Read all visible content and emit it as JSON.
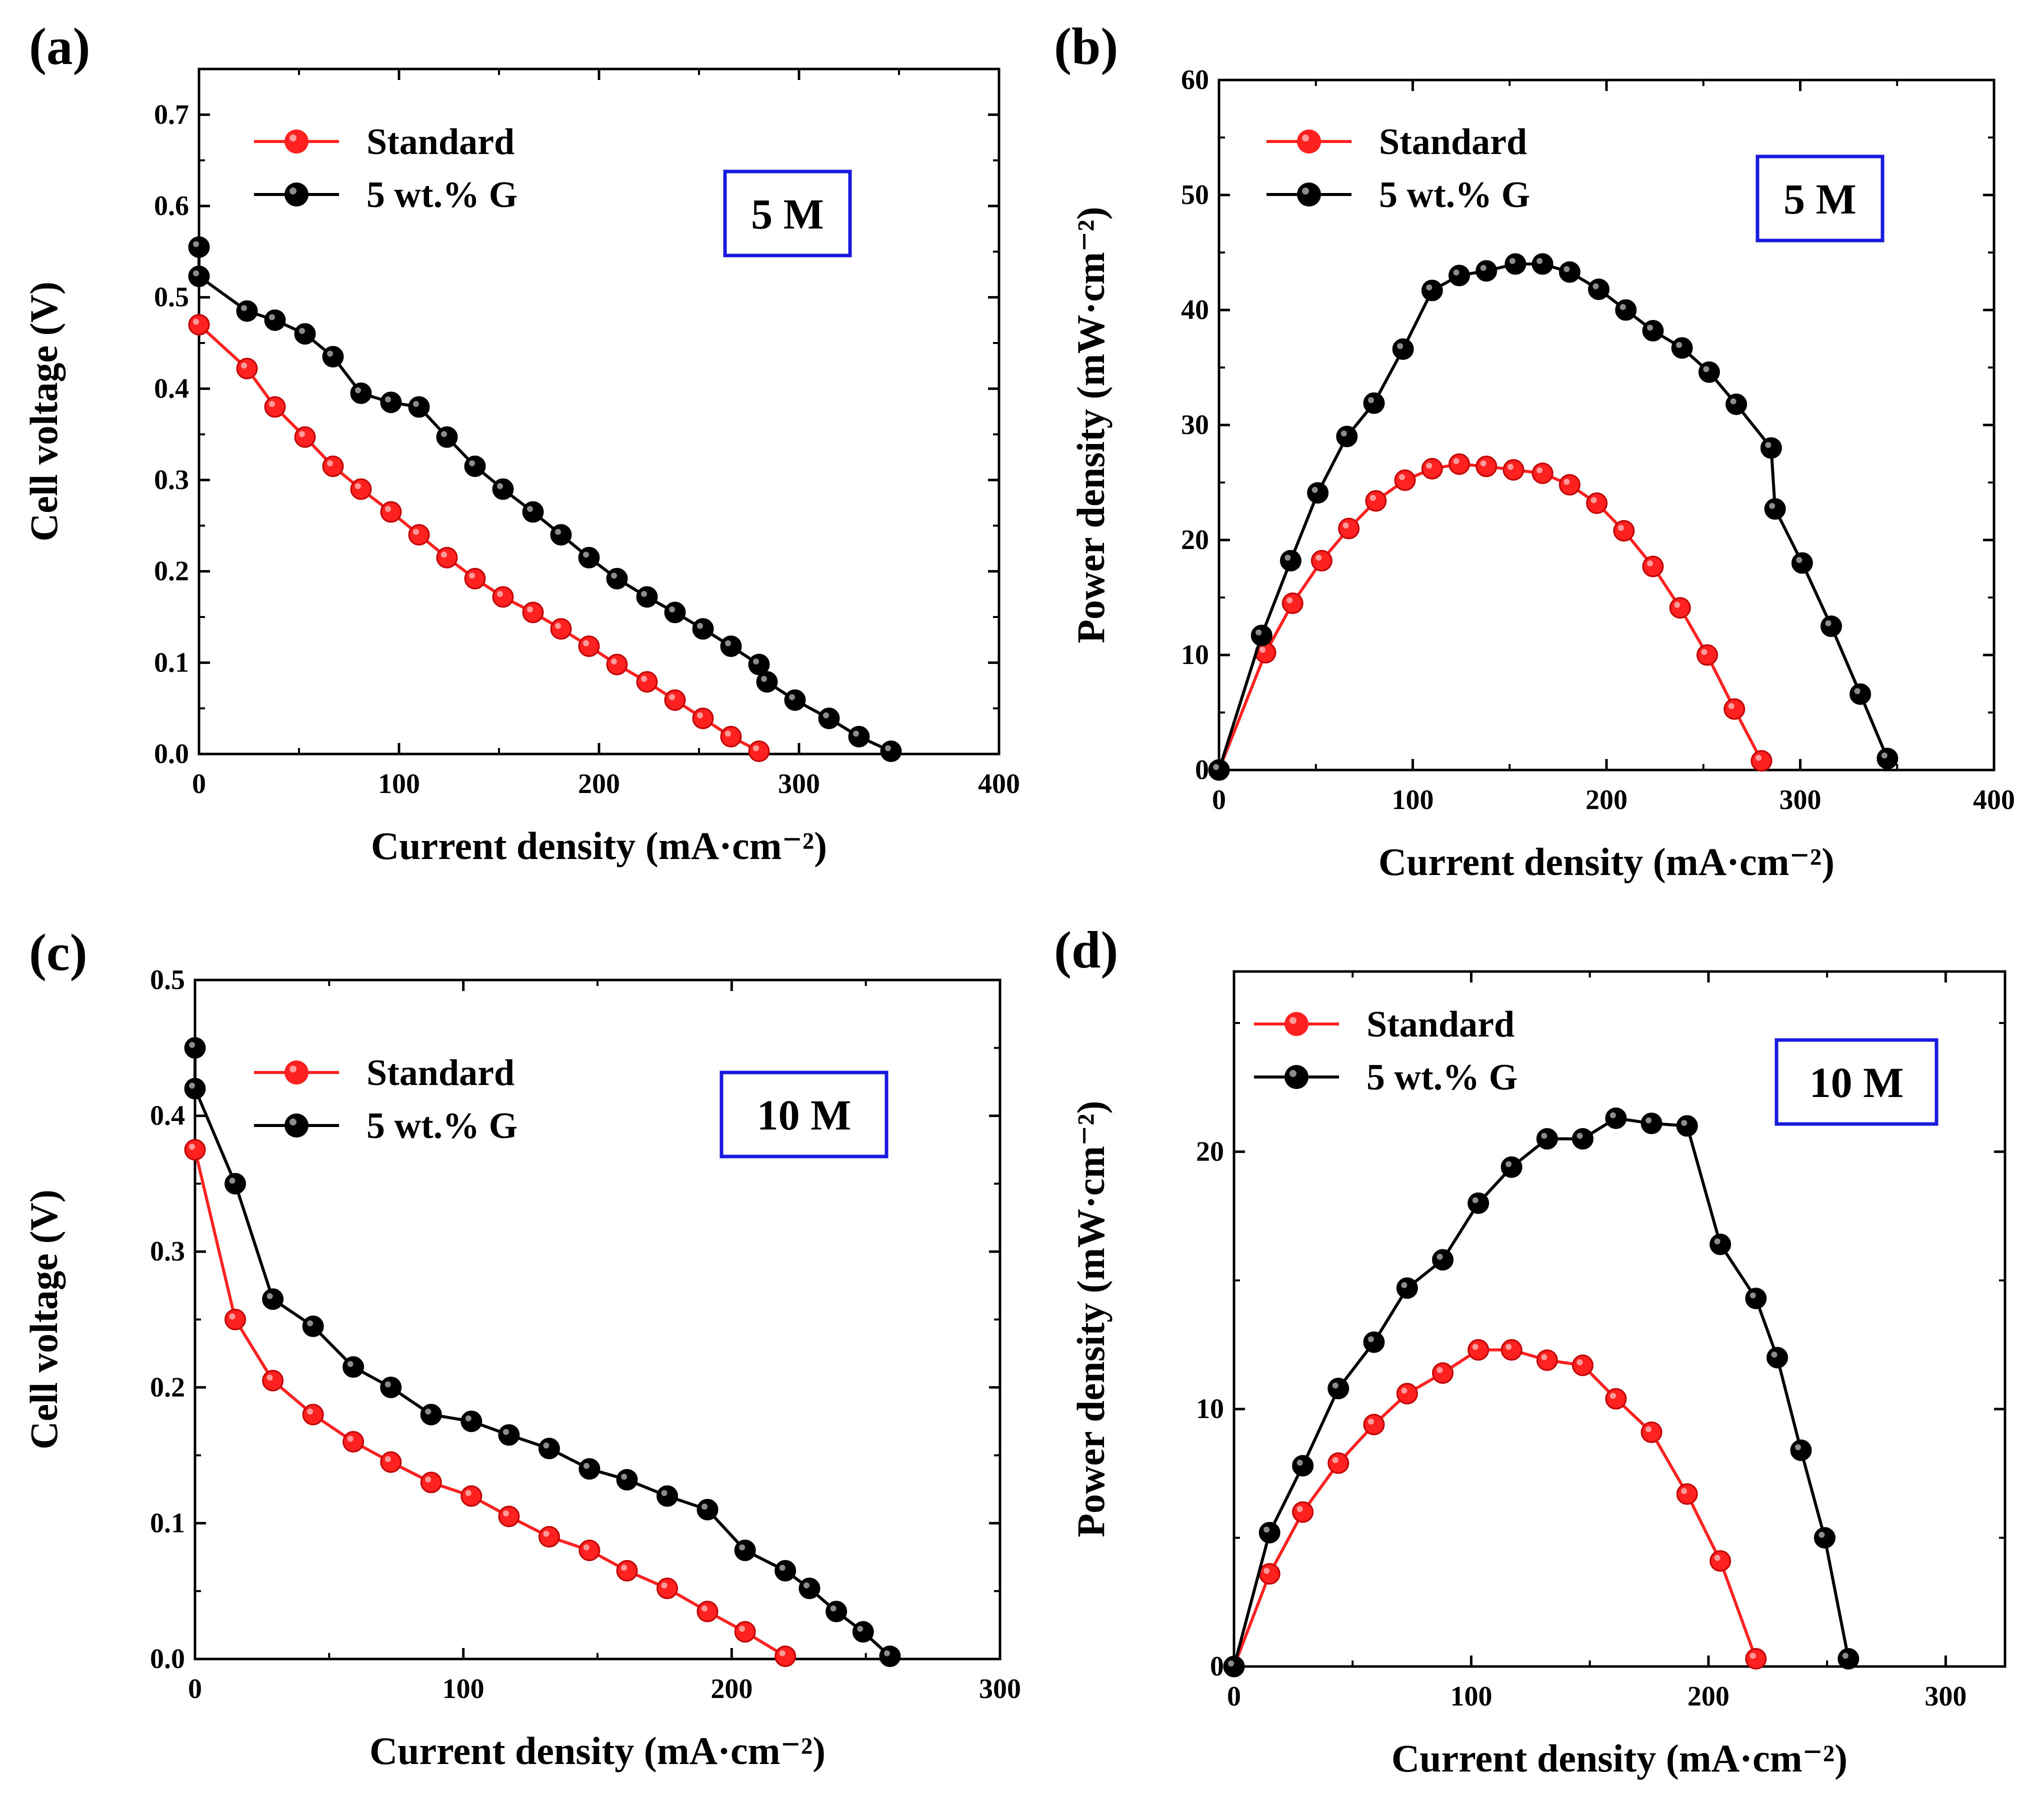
{
  "colors": {
    "standard": "#ff2020",
    "graphene": "#000000",
    "concentration_box": "#1a1adf"
  },
  "chart_data": [
    {
      "panel": "(a)",
      "type": "line",
      "concentration": "5 M",
      "xlabel": "Current density (mA·cm⁻²)",
      "ylabel": "Cell voltage (V)",
      "xlim": [
        0,
        400
      ],
      "ylim": [
        0,
        0.75
      ],
      "xticks": [
        0,
        100,
        200,
        300,
        400
      ],
      "yticks": [
        0.0,
        0.1,
        0.2,
        0.3,
        0.4,
        0.5,
        0.6,
        0.7
      ],
      "ytick_labels": [
        "0.0",
        "0.1",
        "0.2",
        "0.3",
        "0.4",
        "0.5",
        "0.6",
        "0.7"
      ],
      "legend_position": "top-left",
      "series": [
        {
          "name": "Standard",
          "color": "#ff2020",
          "x": [
            0,
            24,
            38,
            53,
            67,
            81,
            96,
            110,
            124,
            138,
            152,
            167,
            181,
            195,
            209,
            224,
            238,
            252,
            266,
            280
          ],
          "y": [
            0.47,
            0.422,
            0.38,
            0.347,
            0.315,
            0.29,
            0.265,
            0.24,
            0.215,
            0.192,
            0.172,
            0.155,
            0.137,
            0.118,
            0.098,
            0.079,
            0.059,
            0.039,
            0.019,
            0.003
          ]
        },
        {
          "name": "5 wt.% G",
          "color": "#000000",
          "x": [
            0,
            0,
            24,
            38,
            53,
            67,
            81,
            96,
            110,
            124,
            138,
            152,
            167,
            181,
            195,
            209,
            224,
            238,
            252,
            266,
            280,
            284,
            298,
            315,
            330,
            346
          ],
          "y": [
            0.555,
            0.523,
            0.485,
            0.475,
            0.46,
            0.435,
            0.395,
            0.385,
            0.38,
            0.347,
            0.315,
            0.29,
            0.265,
            0.24,
            0.215,
            0.192,
            0.172,
            0.155,
            0.137,
            0.118,
            0.098,
            0.079,
            0.059,
            0.039,
            0.019,
            0.003
          ]
        }
      ]
    },
    {
      "panel": "(b)",
      "type": "line",
      "concentration": "5 M",
      "xlabel": "Current density (mA·cm⁻²)",
      "ylabel": "Power density (mW·cm⁻²)",
      "xlim": [
        0,
        400
      ],
      "ylim": [
        0,
        60
      ],
      "xticks": [
        0,
        100,
        200,
        300,
        400
      ],
      "yticks": [
        0,
        10,
        20,
        30,
        40,
        50,
        60
      ],
      "ytick_labels": [
        "0",
        "10",
        "20",
        "30",
        "40",
        "50",
        "60"
      ],
      "legend_position": "top-left",
      "series": [
        {
          "name": "Standard",
          "color": "#ff2020",
          "x": [
            0,
            24,
            38,
            53,
            67,
            81,
            96,
            110,
            124,
            138,
            152,
            167,
            181,
            195,
            209,
            224,
            238,
            252,
            266,
            280
          ],
          "y": [
            0,
            10.2,
            14.5,
            18.2,
            21.0,
            23.4,
            25.2,
            26.2,
            26.6,
            26.4,
            26.1,
            25.8,
            24.8,
            23.2,
            20.8,
            17.7,
            14.1,
            10.0,
            5.3,
            0.8
          ]
        },
        {
          "name": "5 wt.% G",
          "color": "#000000",
          "x": [
            0,
            22,
            37,
            51,
            66,
            80,
            95,
            110,
            124,
            138,
            153,
            167,
            181,
            196,
            210,
            224,
            239,
            253,
            267,
            285,
            287,
            301,
            316,
            331,
            345
          ],
          "y": [
            0,
            11.7,
            18.2,
            24.1,
            29.0,
            31.9,
            36.6,
            41.7,
            43.0,
            43.4,
            44.0,
            44.0,
            43.3,
            41.8,
            40.0,
            38.2,
            36.7,
            34.6,
            31.8,
            28.0,
            22.7,
            18.0,
            12.5,
            6.6,
            1.0
          ]
        }
      ]
    },
    {
      "panel": "(c)",
      "type": "line",
      "concentration": "10 M",
      "xlabel": "Current density (mA·cm⁻²)",
      "ylabel": "Cell voltage (V)",
      "xlim": [
        0,
        300
      ],
      "ylim": [
        0,
        0.5
      ],
      "xticks": [
        0,
        100,
        200,
        300
      ],
      "yticks": [
        0.0,
        0.1,
        0.2,
        0.3,
        0.4,
        0.5
      ],
      "ytick_labels": [
        "0.0",
        "0.1",
        "0.2",
        "0.3",
        "0.4",
        "0.5"
      ],
      "legend_position": "top-left",
      "series": [
        {
          "name": "Standard",
          "color": "#ff2020",
          "x": [
            0,
            15,
            29,
            44,
            59,
            73,
            88,
            103,
            117,
            132,
            147,
            161,
            176,
            191,
            205,
            220
          ],
          "y": [
            0.375,
            0.25,
            0.205,
            0.18,
            0.16,
            0.145,
            0.13,
            0.12,
            0.105,
            0.09,
            0.08,
            0.065,
            0.052,
            0.035,
            0.02,
            0.002
          ]
        },
        {
          "name": "5 wt.% G",
          "color": "#000000",
          "x": [
            0,
            0,
            15,
            29,
            44,
            59,
            73,
            88,
            103,
            117,
            132,
            147,
            161,
            176,
            191,
            205,
            220,
            229,
            239,
            249,
            259
          ],
          "y": [
            0.45,
            0.42,
            0.35,
            0.265,
            0.245,
            0.215,
            0.2,
            0.18,
            0.175,
            0.165,
            0.155,
            0.14,
            0.132,
            0.12,
            0.11,
            0.08,
            0.065,
            0.052,
            0.035,
            0.02,
            0.002
          ]
        }
      ]
    },
    {
      "panel": "(d)",
      "type": "line",
      "concentration": "10 M",
      "xlabel": "Current density (mA·cm⁻²)",
      "ylabel": "Power density (mW·cm⁻²)",
      "xlim": [
        0,
        325
      ],
      "ylim": [
        0,
        27
      ],
      "xticks": [
        0,
        100,
        200,
        300
      ],
      "yticks": [
        0,
        10,
        20
      ],
      "ytick_labels": [
        "0",
        "10",
        "20"
      ],
      "legend_position": "top-left",
      "series": [
        {
          "name": "Standard",
          "color": "#ff2020",
          "x": [
            0,
            15,
            29,
            44,
            59,
            73,
            88,
            103,
            117,
            132,
            147,
            161,
            176,
            191,
            205,
            220
          ],
          "y": [
            0,
            3.6,
            6.0,
            7.9,
            9.4,
            10.6,
            11.4,
            12.3,
            12.3,
            11.9,
            11.7,
            10.4,
            9.1,
            6.7,
            4.1,
            0.3
          ]
        },
        {
          "name": "5 wt.% G",
          "color": "#000000",
          "x": [
            0,
            15,
            29,
            44,
            59,
            73,
            88,
            103,
            117,
            132,
            147,
            161,
            176,
            191,
            205,
            220,
            229,
            239,
            249,
            259
          ],
          "y": [
            0,
            5.2,
            7.8,
            10.8,
            12.6,
            14.7,
            15.8,
            18.0,
            19.4,
            20.5,
            20.5,
            21.3,
            21.1,
            21.0,
            16.4,
            14.3,
            12.0,
            8.4,
            5.0,
            0.3
          ]
        }
      ]
    }
  ]
}
